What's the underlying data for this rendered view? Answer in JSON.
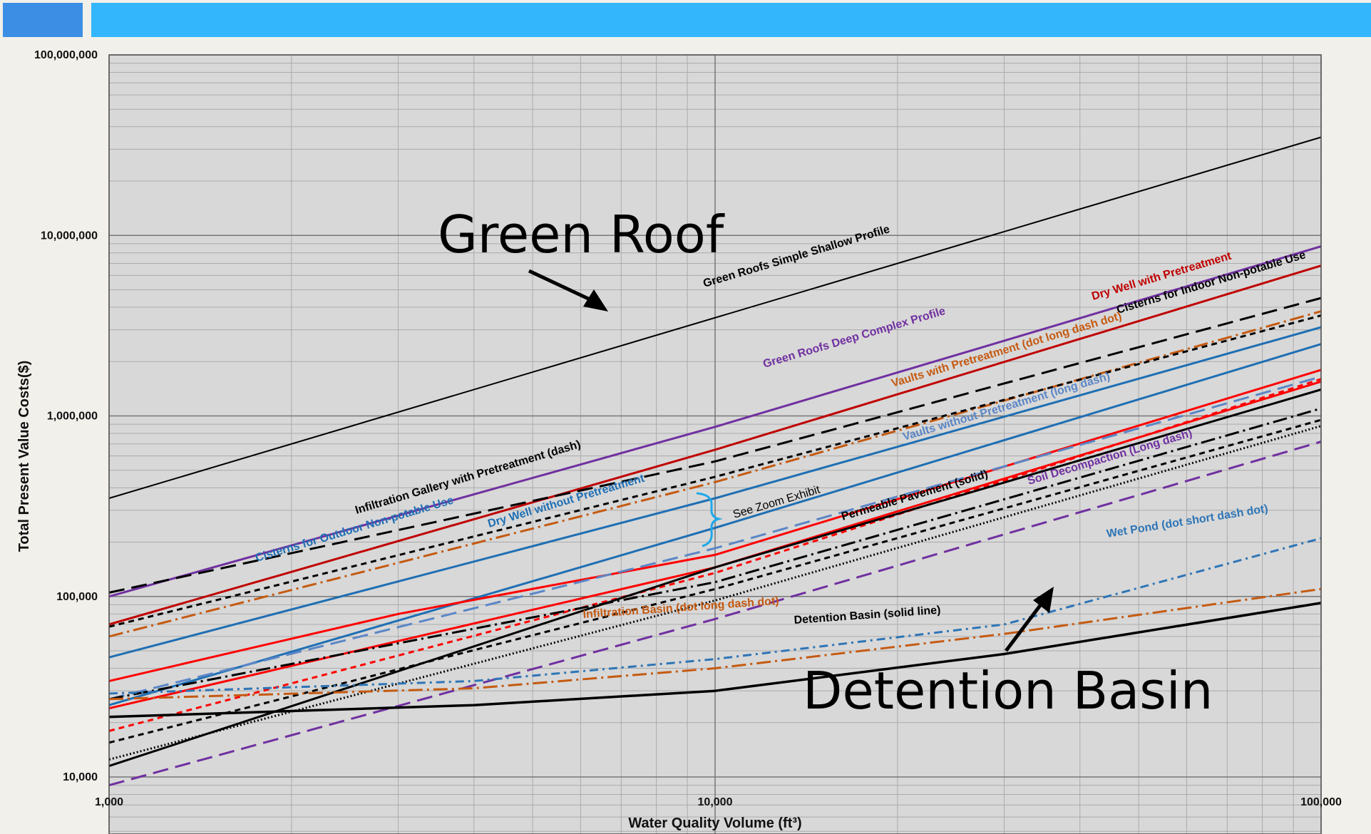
{
  "chart_data": {
    "type": "line",
    "title": "",
    "xlabel": "Water Quality Volume (ft³)",
    "ylabel": "Total Present Value Costs($)",
    "xscale": "log",
    "yscale": "log",
    "xlim": [
      1000,
      100000
    ],
    "ylim": [
      3000,
      100000000
    ],
    "grid": true,
    "x_ticks": [
      {
        "value": 1000,
        "label": "1,000"
      },
      {
        "value": 10000,
        "label": "10,000"
      },
      {
        "value": 100000,
        "label": "100,000"
      }
    ],
    "y_ticks": [
      {
        "value": 10000,
        "label": "10,000"
      },
      {
        "value": 100000,
        "label": "100,000"
      },
      {
        "value": 1000000,
        "label": "1,000,000"
      },
      {
        "value": 10000000,
        "label": "10,000,000"
      },
      {
        "value": 100000000,
        "label": "100,000,000"
      }
    ],
    "series": [
      {
        "name": "Green Roofs Simple Shallow Profile",
        "color": "#000000",
        "width": 2,
        "dash": "",
        "points": [
          [
            1000,
            350000
          ],
          [
            100000,
            35000000
          ]
        ]
      },
      {
        "name": "Green Roofs Deep Complex Profile",
        "color": "#7030a0",
        "width": 3,
        "dash": "",
        "points": [
          [
            1000,
            100000
          ],
          [
            10000,
            870000
          ],
          [
            100000,
            8700000
          ]
        ]
      },
      {
        "name": "Dry Well with Pretreatment",
        "color": "#c00000",
        "width": 3,
        "dash": "",
        "points": [
          [
            1000,
            70000
          ],
          [
            10000,
            650000
          ],
          [
            100000,
            6800000
          ]
        ]
      },
      {
        "name": "Cisterns for Indoor Non-potable Use",
        "color": "#000000",
        "width": 3,
        "dash": "22 10",
        "points": [
          [
            1000,
            105000
          ],
          [
            10000,
            560000
          ],
          [
            100000,
            4500000
          ]
        ]
      },
      {
        "name": "Vaults with Pretreatment (dot long dash dot)",
        "color": "#c55a11",
        "width": 3,
        "dash": "20 6 3 6",
        "points": [
          [
            1000,
            60000
          ],
          [
            10000,
            430000
          ],
          [
            100000,
            3800000
          ]
        ]
      },
      {
        "name": "",
        "color": "#000000",
        "width": 3,
        "dash": "8 6",
        "points": [
          [
            1000,
            68000
          ],
          [
            10000,
            460000
          ],
          [
            100000,
            3600000
          ]
        ]
      },
      {
        "name": "Cisterns for Outdoor Non-potable Use",
        "color": "#1f6fb4",
        "width": 3,
        "dash": "",
        "points": [
          [
            1000,
            46000
          ],
          [
            10000,
            350000
          ],
          [
            100000,
            3100000
          ]
        ]
      },
      {
        "name": "Dry Well without Pretreatment",
        "color": "#1f6fb4",
        "width": 3,
        "dash": "",
        "points": [
          [
            1000,
            25000
          ],
          [
            10000,
            240000
          ],
          [
            100000,
            2500000
          ]
        ]
      },
      {
        "name": "",
        "color": "#ff0000",
        "width": 3,
        "dash": "",
        "points": [
          [
            1000,
            34000
          ],
          [
            3000,
            80000
          ],
          [
            10000,
            170000
          ],
          [
            100000,
            1800000
          ]
        ]
      },
      {
        "name": "",
        "color": "#ff0000",
        "width": 3,
        "dash": "",
        "points": [
          [
            1000,
            24000
          ],
          [
            10000,
            145000
          ],
          [
            100000,
            1550000
          ]
        ]
      },
      {
        "name": "",
        "color": "#ff0000",
        "width": 3,
        "dash": "8 6",
        "points": [
          [
            1000,
            18000
          ],
          [
            10000,
            135000
          ],
          [
            100000,
            1600000
          ]
        ]
      },
      {
        "name": "Vaults without Pretreatment (long dash)",
        "color": "#5b86c6",
        "width": 3,
        "dash": "22 10",
        "points": [
          [
            1000,
            27000
          ],
          [
            10000,
            185000
          ],
          [
            100000,
            1650000
          ]
        ]
      },
      {
        "name": "Permeable Pavement (solid)",
        "color": "#000000",
        "width": 3,
        "dash": "",
        "points": [
          [
            1000,
            11500
          ],
          [
            10000,
            145000
          ],
          [
            100000,
            1400000
          ]
        ]
      },
      {
        "name": "",
        "color": "#000000",
        "width": 3,
        "dash": "20 6 3 6",
        "points": [
          [
            1000,
            27000
          ],
          [
            10000,
            120000
          ],
          [
            100000,
            1100000
          ]
        ]
      },
      {
        "name": "",
        "color": "#000000",
        "width": 3,
        "dash": "8 6",
        "points": [
          [
            1000,
            15500
          ],
          [
            10000,
            110000
          ],
          [
            100000,
            950000
          ]
        ]
      },
      {
        "name": "",
        "color": "#000000",
        "width": 3,
        "dash": "2 3",
        "points": [
          [
            1000,
            12500
          ],
          [
            10000,
            95000
          ],
          [
            100000,
            880000
          ]
        ]
      },
      {
        "name": "Soil Decompaction (Long dash)",
        "color": "#7030a0",
        "width": 3,
        "dash": "22 10",
        "points": [
          [
            1000,
            9000
          ],
          [
            10000,
            75000
          ],
          [
            100000,
            720000
          ]
        ]
      },
      {
        "name": "Wet Pond (dot short dash dot)",
        "color": "#2e75b6",
        "width": 3,
        "dash": "12 6 3 6",
        "points": [
          [
            1000,
            29000
          ],
          [
            4000,
            34000
          ],
          [
            10000,
            45000
          ],
          [
            30000,
            70000
          ],
          [
            100000,
            210000
          ]
        ]
      },
      {
        "name": "Infiltration Basin (dot long dash dot)",
        "color": "#c55a11",
        "width": 3,
        "dash": "20 6 3 6",
        "points": [
          [
            1000,
            27000
          ],
          [
            4000,
            31000
          ],
          [
            10000,
            40000
          ],
          [
            30000,
            62000
          ],
          [
            100000,
            110000
          ]
        ]
      },
      {
        "name": "Detention Basin (solid line)",
        "color": "#000000",
        "width": 3.5,
        "dash": "",
        "points": [
          [
            1000,
            21500
          ],
          [
            4000,
            25000
          ],
          [
            10000,
            30000
          ],
          [
            30000,
            48000
          ],
          [
            100000,
            92000
          ]
        ]
      }
    ],
    "annotations": [
      {
        "text": "Infiltration Gallery with Pretreatment (dash)",
        "color": "#000000"
      },
      {
        "text": "See Zoom Exhibit",
        "color": "#000000"
      }
    ]
  },
  "callouts": {
    "green_roof": "Green Roof",
    "detention_basin": "Detention Basin"
  }
}
